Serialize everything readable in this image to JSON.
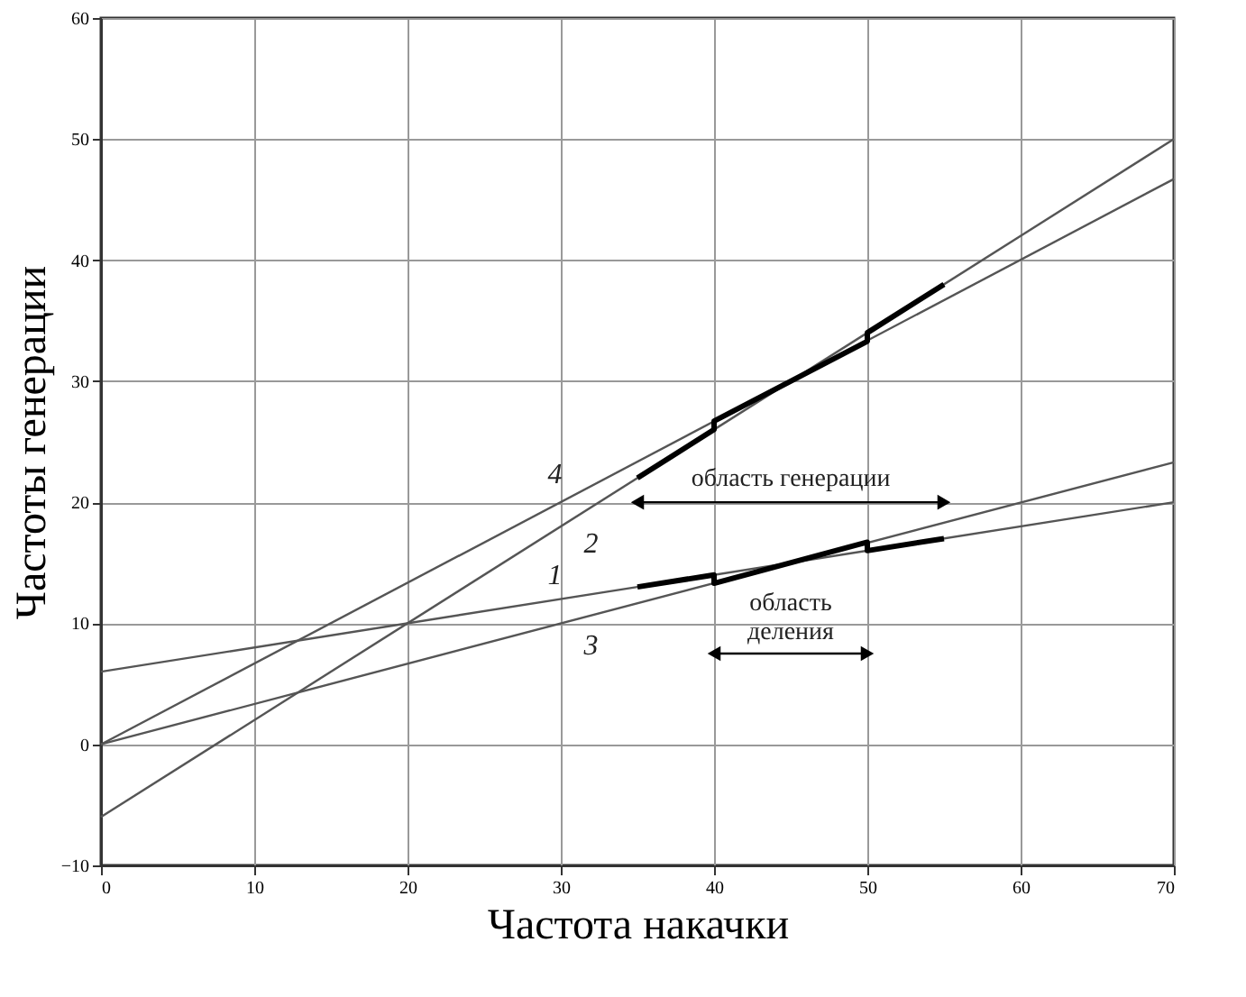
{
  "chart_data": {
    "type": "line",
    "xlabel": "Частота накачки",
    "ylabel": "Частоты генерации",
    "xlim": [
      0,
      70
    ],
    "ylim": [
      -10,
      60
    ],
    "xticks": [
      0,
      10,
      20,
      30,
      40,
      50,
      60,
      70
    ],
    "yticks": [
      -10,
      0,
      10,
      20,
      30,
      40,
      50,
      60
    ],
    "grid": true,
    "line_style": "solid",
    "series": [
      {
        "name": "4",
        "color": "#555555",
        "x": [
          0,
          70
        ],
        "values": [
          0,
          46.7
        ]
      },
      {
        "name": "2",
        "color": "#555555",
        "x": [
          0,
          70
        ],
        "values": [
          -6,
          50
        ]
      },
      {
        "name": "1",
        "color": "#555555",
        "x": [
          0,
          70
        ],
        "values": [
          6,
          20
        ]
      },
      {
        "name": "3",
        "color": "#555555",
        "x": [
          0,
          70
        ],
        "values": [
          0,
          23.3
        ]
      },
      {
        "color": "#000000",
        "x": [
          35,
          40,
          40,
          50,
          50,
          55
        ],
        "values": [
          22,
          26,
          26.7,
          33.3,
          34,
          38
        ]
      },
      {
        "color": "#000000",
        "x": [
          35,
          40,
          40,
          50,
          50,
          55
        ],
        "values": [
          13,
          14,
          13.3,
          16.7,
          16,
          17
        ]
      },
      {
        "name": "область генерации",
        "color": "#000000",
        "x": [
          35,
          55
        ],
        "values": [
          20,
          20
        ],
        "marker": "triangle"
      },
      {
        "name": "область\nделения",
        "color": "#000000",
        "x": [
          40,
          50
        ],
        "values": [
          7.5,
          7.5
        ],
        "marker": "triangle"
      }
    ]
  }
}
